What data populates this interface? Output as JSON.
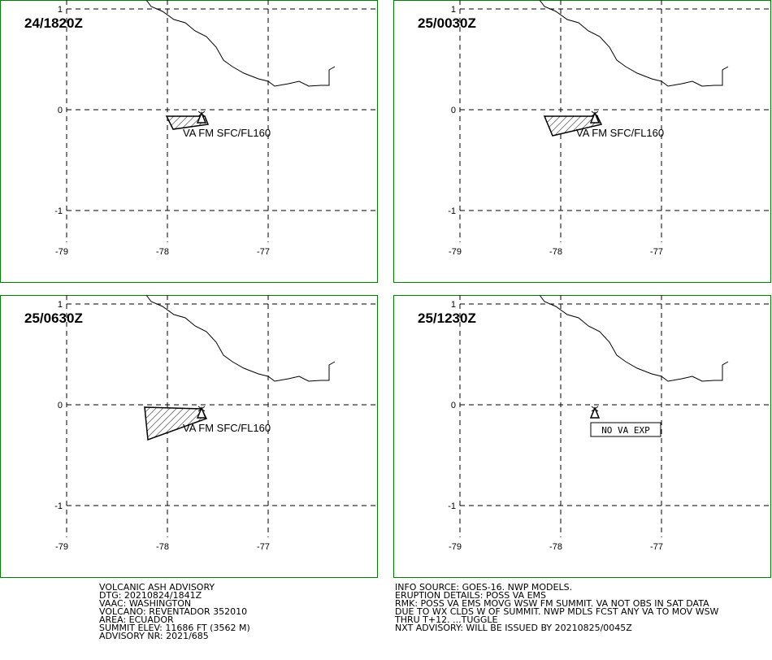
{
  "panels": [
    {
      "time": "24/1820Z",
      "va_label": "VA FM SFC/FL160"
    },
    {
      "time": "25/0030Z",
      "va_label": "VA FM SFC/FL160"
    },
    {
      "time": "25/0630Z",
      "va_label": "VA FM SFC/FL160"
    },
    {
      "time": "25/1230Z",
      "box_label": "NO VA EXP"
    }
  ],
  "grid": {
    "lat_labels": [
      "1",
      "0",
      "-1"
    ],
    "lon_labels": [
      "-79",
      "-78",
      "-77"
    ]
  },
  "advisory": {
    "left": [
      "VOLCANIC ASH ADVISORY",
      "DTG: 20210824/1841Z",
      "VAAC: WASHINGTON",
      "VOLCANO: REVENTADOR 352010",
      "AREA: ECUADOR",
      "SUMMIT ELEV: 11686 FT (3562 M)",
      "ADVISORY NR: 2021/685"
    ],
    "right": [
      "INFO SOURCE: GOES-16. NWP MODELS.",
      "ERUPTION DETAILS: POSS VA EMS",
      "RMK: POSS VA EMS MOVG WSW FM SUMMIT. VA NOT OBS IN SAT DATA",
      "DUE TO WX CLDS W OF SUMMIT. NWP MDLS FCST ANY VA TO MOV WSW",
      "THRU T+12. ...TUGGLE",
      "NXT ADVISORY: WILL BE ISSUED BY 20210825/0045Z"
    ]
  }
}
